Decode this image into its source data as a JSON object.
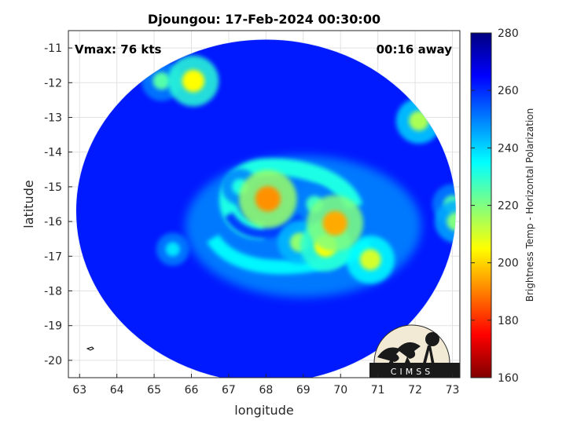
{
  "chart_data": {
    "type": "heatmap",
    "title": "Djoungou: 17-Feb-2024 00:30:00",
    "xlabel": "longitude",
    "ylabel": "latitude",
    "xlim": [
      62.7,
      73.2
    ],
    "ylim": [
      -20.5,
      -10.5
    ],
    "xticks": [
      63,
      64,
      65,
      66,
      67,
      68,
      69,
      70,
      71,
      72,
      73
    ],
    "yticks": [
      -11,
      -12,
      -13,
      -14,
      -15,
      -16,
      -17,
      -18,
      -19,
      -20
    ],
    "grid": true,
    "annotations": {
      "vmax": "Vmax: 76 kts",
      "time_away": "00:16 away"
    },
    "colorbar": {
      "label": "Brightness Temp - Horizontal Polarization",
      "range": [
        160,
        280
      ],
      "ticks": [
        160,
        180,
        200,
        220,
        240,
        260,
        280
      ],
      "colors": [
        "#800000",
        "#ff0000",
        "#ff8000",
        "#ffff00",
        "#80ff80",
        "#00ffff",
        "#0080ff",
        "#0000ff",
        "#000080"
      ]
    },
    "swath": {
      "center": [
        68.0,
        -15.7
      ],
      "radius_lon": 5.1,
      "radius_lat": 4.95,
      "background_temp": 262
    },
    "features": [
      {
        "lon": 68.05,
        "lat": -15.35,
        "temp": 192
      },
      {
        "lon": 69.85,
        "lat": -16.05,
        "temp": 195
      },
      {
        "lon": 69.6,
        "lat": -16.7,
        "temp": 205
      },
      {
        "lon": 70.8,
        "lat": -17.1,
        "temp": 210
      },
      {
        "lon": 68.9,
        "lat": -16.6,
        "temp": 218
      },
      {
        "lon": 69.3,
        "lat": -15.5,
        "temp": 228
      },
      {
        "lon": 67.3,
        "lat": -15.0,
        "temp": 232
      },
      {
        "lon": 65.5,
        "lat": -16.8,
        "temp": 238
      },
      {
        "lon": 66.05,
        "lat": -11.95,
        "temp": 205
      },
      {
        "lon": 65.2,
        "lat": -11.95,
        "temp": 225
      },
      {
        "lon": 72.1,
        "lat": -13.1,
        "temp": 215
      },
      {
        "lon": 73.0,
        "lat": -15.5,
        "temp": 225
      },
      {
        "lon": 73.1,
        "lat": -16.0,
        "temp": 220
      }
    ],
    "logo": {
      "text": "CIMSS"
    }
  }
}
